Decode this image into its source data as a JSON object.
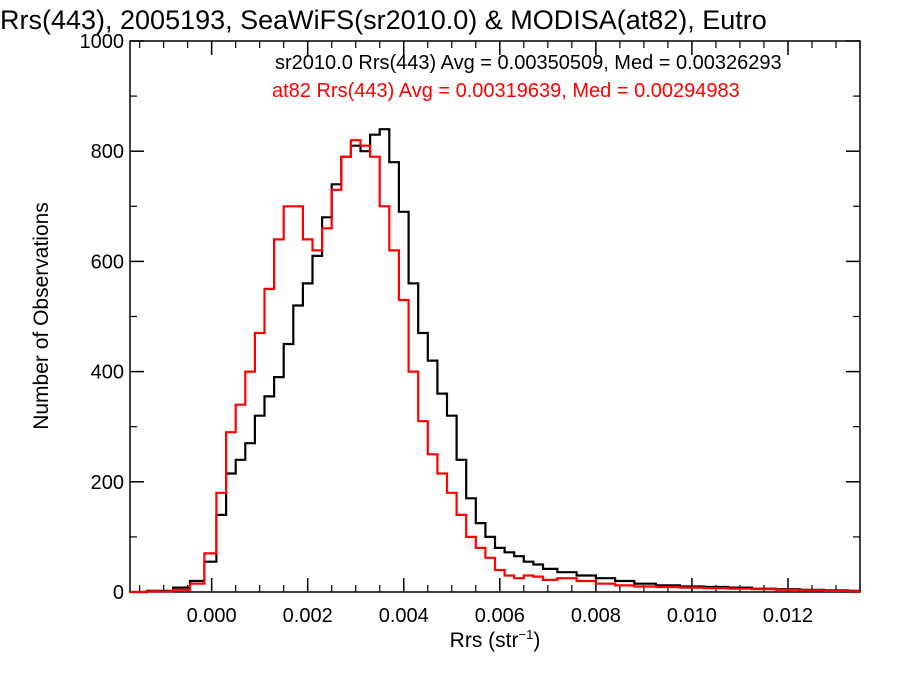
{
  "chart_data": {
    "type": "line",
    "subtype": "step-histogram",
    "title": "Rrs(443), 2005193, SeaWiFS(sr2010.0) & MODISA(at82), Eutro",
    "xlabel": "Rrs (str",
    "xlabel_superscript": "−1",
    "xlabel_close": ")",
    "ylabel": "Number of Observations",
    "xlim": [
      -0.0017,
      0.0135
    ],
    "ylim": [
      0,
      1000
    ],
    "xticks": [
      "0.000",
      "0.002",
      "0.004",
      "0.006",
      "0.008",
      "0.010",
      "0.012"
    ],
    "xtick_values": [
      0.0,
      0.002,
      0.004,
      0.006,
      0.008,
      0.01,
      0.012
    ],
    "yticks": [
      "0",
      "200",
      "400",
      "600",
      "800",
      "1000"
    ],
    "ytick_values": [
      0,
      200,
      400,
      600,
      800,
      1000
    ],
    "grid": false,
    "legend_placement": "top-right",
    "series": [
      {
        "name": "sr2010.0",
        "label": "sr2010.0 Rrs(443) Avg = 0.00350509, Med = 0.00326293",
        "color": "#000000",
        "x": [
          -0.0017,
          -0.001,
          -0.0006,
          -0.0003,
          0.0,
          0.0002,
          0.0004,
          0.0006,
          0.0008,
          0.001,
          0.0012,
          0.0014,
          0.0016,
          0.0018,
          0.002,
          0.0022,
          0.0024,
          0.0026,
          0.0028,
          0.003,
          0.0032,
          0.0034,
          0.0036,
          0.0038,
          0.004,
          0.0042,
          0.0044,
          0.0046,
          0.0048,
          0.005,
          0.0052,
          0.0054,
          0.0056,
          0.0058,
          0.006,
          0.0062,
          0.0064,
          0.0066,
          0.0068,
          0.007,
          0.0074,
          0.0078,
          0.0082,
          0.0086,
          0.009,
          0.0095,
          0.01,
          0.0105,
          0.011,
          0.0115,
          0.012,
          0.0125,
          0.013,
          0.0135
        ],
        "values": [
          0,
          2,
          8,
          20,
          55,
          140,
          215,
          240,
          270,
          320,
          355,
          390,
          450,
          520,
          560,
          610,
          680,
          740,
          790,
          810,
          800,
          830,
          840,
          780,
          690,
          560,
          470,
          420,
          360,
          320,
          240,
          170,
          125,
          100,
          80,
          72,
          65,
          55,
          50,
          42,
          36,
          30,
          25,
          20,
          15,
          12,
          10,
          9,
          8,
          6,
          5,
          4,
          3,
          2
        ]
      },
      {
        "name": "at82",
        "label": "at82 Rrs(443) Avg = 0.00319639, Med = 0.00294983",
        "color": "#ff0000",
        "x": [
          -0.0017,
          -0.001,
          -0.0006,
          -0.0003,
          0.0,
          0.0002,
          0.0004,
          0.0006,
          0.0008,
          0.001,
          0.0012,
          0.0014,
          0.0016,
          0.0018,
          0.002,
          0.0022,
          0.0024,
          0.0026,
          0.0028,
          0.003,
          0.0032,
          0.0034,
          0.0036,
          0.0038,
          0.004,
          0.0042,
          0.0044,
          0.0046,
          0.0048,
          0.005,
          0.0052,
          0.0054,
          0.0056,
          0.0058,
          0.006,
          0.0062,
          0.0064,
          0.0066,
          0.0068,
          0.007,
          0.0074,
          0.0078,
          0.0082,
          0.0086,
          0.009,
          0.0095,
          0.01,
          0.0105,
          0.011,
          0.0115,
          0.012,
          0.0125,
          0.013,
          0.0135
        ],
        "values": [
          0,
          1,
          4,
          15,
          70,
          180,
          290,
          340,
          400,
          470,
          550,
          640,
          700,
          700,
          640,
          620,
          660,
          730,
          790,
          820,
          810,
          790,
          700,
          620,
          530,
          400,
          310,
          250,
          215,
          180,
          140,
          100,
          80,
          62,
          40,
          30,
          25,
          30,
          28,
          22,
          25,
          20,
          15,
          12,
          10,
          9,
          8,
          7,
          6,
          5,
          4,
          3,
          2,
          1
        ]
      }
    ]
  }
}
